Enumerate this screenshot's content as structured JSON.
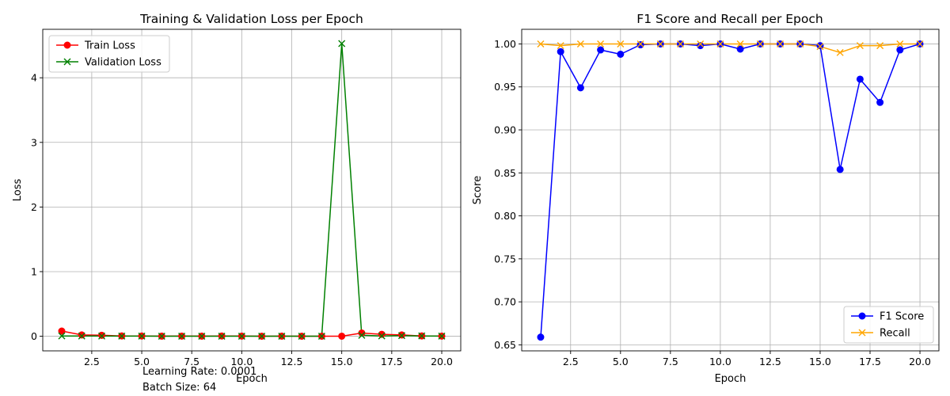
{
  "annotations": {
    "learning_rate": "Learning Rate: 0.0001",
    "batch_size": "Batch Size: 64"
  },
  "chart_data": [
    {
      "type": "line",
      "title": "Training & Validation Loss per Epoch",
      "xlabel": "Epoch",
      "ylabel": "Loss",
      "xlim": [
        0.05,
        20.95
      ],
      "ylim": [
        -0.226,
        4.75
      ],
      "xticks": [
        2.5,
        5.0,
        7.5,
        10.0,
        12.5,
        15.0,
        17.5,
        20.0
      ],
      "xtick_labels": [
        "2.5",
        "5.0",
        "7.5",
        "10.0",
        "12.5",
        "15.0",
        "17.5",
        "20.0"
      ],
      "yticks": [
        0,
        1,
        2,
        3,
        4
      ],
      "ytick_labels": [
        "0",
        "1",
        "2",
        "3",
        "4"
      ],
      "grid": true,
      "legend_position": "upper-left",
      "x": [
        1,
        2,
        3,
        4,
        5,
        6,
        7,
        8,
        9,
        10,
        11,
        12,
        13,
        14,
        15,
        16,
        17,
        18,
        19,
        20
      ],
      "series": [
        {
          "name": "Train Loss",
          "color": "#ff0000",
          "marker": "circle",
          "values": [
            0.08,
            0.02,
            0.015,
            0.005,
            0.004,
            0.002,
            0.003,
            0.002,
            0.004,
            0.003,
            0.001,
            0.002,
            0.001,
            0.001,
            0.001,
            0.05,
            0.03,
            0.02,
            0.005,
            0.003
          ]
        },
        {
          "name": "Validation Loss",
          "color": "#008000",
          "marker": "x",
          "values": [
            0.005,
            0.004,
            0.003,
            0.002,
            0.002,
            0.001,
            0.001,
            0.001,
            0.001,
            0.001,
            0.001,
            0.001,
            0.001,
            0.001,
            4.53,
            0.015,
            0.005,
            0.01,
            0.005,
            0.002
          ]
        }
      ]
    },
    {
      "type": "line",
      "title": "F1 Score and Recall per Epoch",
      "xlabel": "Epoch",
      "ylabel": "Score",
      "xlim": [
        0.05,
        20.95
      ],
      "ylim": [
        0.643,
        1.017
      ],
      "xticks": [
        2.5,
        5.0,
        7.5,
        10.0,
        12.5,
        15.0,
        17.5,
        20.0
      ],
      "xtick_labels": [
        "2.5",
        "5.0",
        "7.5",
        "10.0",
        "12.5",
        "15.0",
        "17.5",
        "20.0"
      ],
      "yticks": [
        0.65,
        0.7,
        0.75,
        0.8,
        0.85,
        0.9,
        0.95,
        1.0
      ],
      "ytick_labels": [
        "0.65",
        "0.70",
        "0.75",
        "0.80",
        "0.85",
        "0.90",
        "0.95",
        "1.00"
      ],
      "grid": true,
      "legend_position": "lower-right",
      "x": [
        1,
        2,
        3,
        4,
        5,
        6,
        7,
        8,
        9,
        10,
        11,
        12,
        13,
        14,
        15,
        16,
        17,
        18,
        19,
        20
      ],
      "series": [
        {
          "name": "F1 Score",
          "color": "#0000ff",
          "marker": "circle",
          "values": [
            0.659,
            0.991,
            0.949,
            0.993,
            0.988,
            0.999,
            1.0,
            1.0,
            0.998,
            1.0,
            0.994,
            1.0,
            1.0,
            1.0,
            0.998,
            0.854,
            0.959,
            0.932,
            0.993,
            1.0
          ]
        },
        {
          "name": "Recall",
          "color": "#ffa500",
          "marker": "x",
          "values": [
            1.0,
            0.998,
            1.0,
            1.0,
            1.0,
            1.0,
            1.0,
            1.0,
            1.0,
            1.0,
            1.0,
            1.0,
            1.0,
            1.0,
            0.997,
            0.99,
            0.998,
            0.998,
            1.0,
            1.0
          ]
        }
      ]
    }
  ]
}
